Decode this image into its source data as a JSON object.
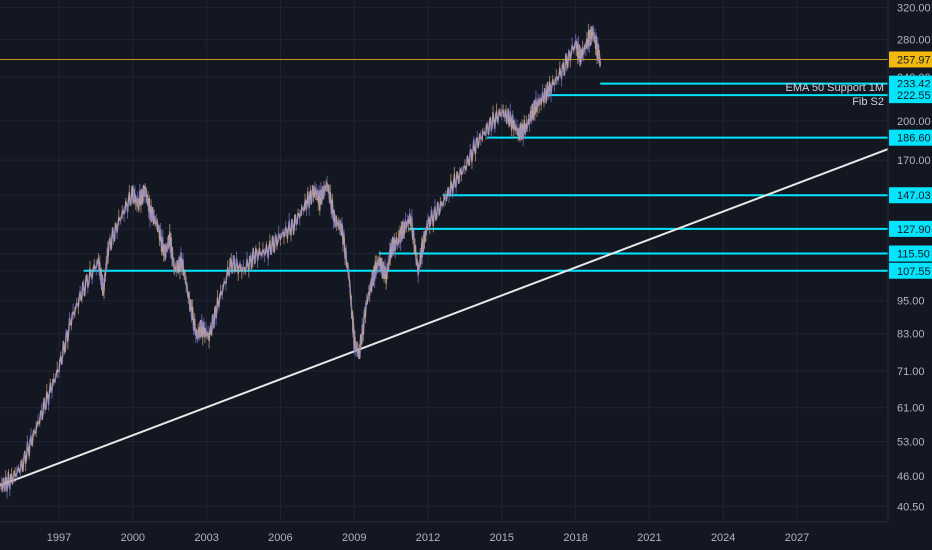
{
  "chart_data": {
    "type": "line",
    "scale": "log",
    "ylim": [
      38,
      330
    ],
    "xlim": [
      1994.6,
      2030.7
    ],
    "y_ticks": [
      "320.00",
      "280.00",
      "240.00",
      "200.00",
      "170.00",
      "147.03",
      "127.90",
      "115.50",
      "107.55",
      "95.00",
      "83.00",
      "71.00",
      "61.00",
      "53.00",
      "46.00",
      "40.50"
    ],
    "y_tick_values": [
      320,
      280,
      240,
      200,
      170,
      147.03,
      127.9,
      115.5,
      107.55,
      95,
      83,
      71,
      61,
      53,
      46,
      40.5
    ],
    "x_ticks": [
      "1997",
      "2000",
      "2003",
      "2006",
      "2009",
      "2012",
      "2015",
      "2018",
      "2021",
      "2024",
      "2027"
    ],
    "x_tick_values": [
      1997,
      2000,
      2003,
      2006,
      2009,
      2012,
      2015,
      2018,
      2021,
      2024,
      2027
    ],
    "price_series": {
      "x": [
        1994.6,
        1995.0,
        1995.5,
        1996.0,
        1996.5,
        1997.0,
        1997.5,
        1998.0,
        1998.6,
        1998.8,
        1999.0,
        1999.5,
        2000.0,
        2000.2,
        2000.5,
        2000.7,
        2001.0,
        2001.3,
        2001.5,
        2001.7,
        2002.0,
        2002.3,
        2002.6,
        2002.8,
        2003.1,
        2003.5,
        2004.0,
        2004.5,
        2005.0,
        2005.5,
        2006.0,
        2006.5,
        2007.0,
        2007.4,
        2007.6,
        2007.9,
        2008.2,
        2008.5,
        2008.8,
        2009.0,
        2009.2,
        2009.5,
        2009.8,
        2010.0,
        2010.3,
        2010.5,
        2010.8,
        2011.0,
        2011.3,
        2011.6,
        2011.8,
        2012.0,
        2012.5,
        2013.0,
        2013.5,
        2014.0,
        2014.5,
        2015.0,
        2015.4,
        2015.7,
        2016.0,
        2016.3,
        2016.6,
        2017.0,
        2017.5,
        2018.0,
        2018.2,
        2018.5,
        2018.7,
        2018.9,
        2019.0
      ],
      "y": [
        44,
        45,
        48,
        55,
        63,
        72,
        88,
        100,
        112,
        99,
        118,
        134,
        148,
        142,
        150,
        138,
        130,
        115,
        123,
        108,
        112,
        95,
        82,
        85,
        82,
        95,
        111,
        108,
        115,
        117,
        124,
        129,
        141,
        150,
        144,
        154,
        133,
        128,
        104,
        80,
        76,
        94,
        106,
        112,
        105,
        118,
        122,
        128,
        134,
        107,
        120,
        131,
        140,
        153,
        165,
        183,
        196,
        208,
        200,
        190,
        195,
        210,
        218,
        230,
        248,
        276,
        260,
        278,
        290,
        268,
        255
      ]
    },
    "levels": [
      {
        "label": "233.42",
        "value": 233.42,
        "from": 2019.0
      },
      {
        "label": "222.55",
        "value": 222.55,
        "from": 2016.8
      },
      {
        "label": "186.60",
        "value": 186.6,
        "from": 2014.4
      },
      {
        "label": "147.03",
        "value": 147.03,
        "from": 2012.6
      },
      {
        "label": "127.90",
        "value": 127.9,
        "from": 2011.2
      },
      {
        "label": "115.50",
        "value": 115.5,
        "from": 2010.0
      },
      {
        "label": "107.55",
        "value": 107.55,
        "from": 1998.0
      }
    ],
    "current_price": {
      "label": "257.97",
      "value": 257.97
    },
    "trendline": {
      "x1": 1994.6,
      "y1": 44.2,
      "x2": 2030.7,
      "y2": 178
    },
    "annotations": [
      {
        "text": "EMA 50 Support 1M",
        "value": 230
      },
      {
        "text": "Fib S2",
        "value": 217
      }
    ],
    "grid": true
  },
  "colors": {
    "background": "#131722",
    "grid": "#1f2433",
    "level": "#00e5ff",
    "current_price": "#f0b90b",
    "trendline": "#e8e8e8",
    "price": "#b9a9c4",
    "axis_text": "#b2b5be"
  }
}
